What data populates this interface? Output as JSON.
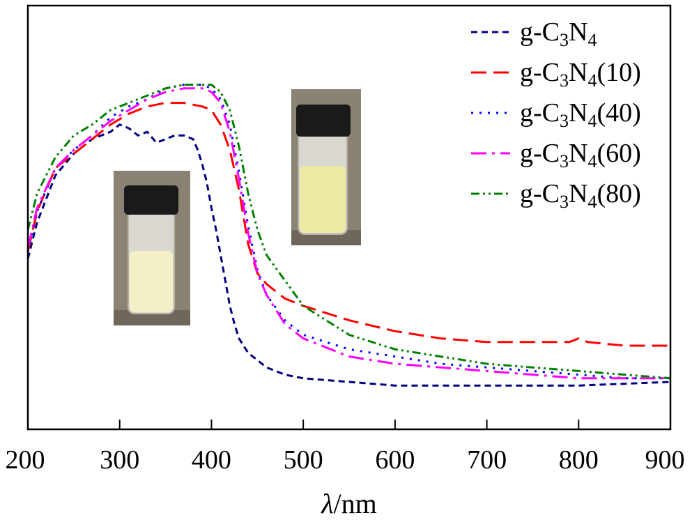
{
  "chart_data": {
    "type": "line",
    "title": "",
    "xlabel_symbol": "λ",
    "xlabel_unit": "/nm",
    "ylabel": "",
    "xlim": [
      200,
      900
    ],
    "ylim": [
      0,
      1
    ],
    "x_ticks": [
      200,
      300,
      400,
      500,
      600,
      700,
      800,
      900
    ],
    "y_ticks_shown": false,
    "legend_position": "top-right",
    "series": [
      {
        "name": "g-C3N4",
        "legend_base": "g-C",
        "legend_sub1": "3",
        "legend_mid": "N",
        "legend_sub2": "4",
        "legend_suffix": "",
        "color": "#000080",
        "dash": "9,6",
        "x": [
          200,
          210,
          230,
          250,
          270,
          290,
          300,
          310,
          320,
          330,
          340,
          350,
          360,
          370,
          380,
          385,
          390,
          395,
          400,
          405,
          410,
          415,
          420,
          425,
          430,
          440,
          450,
          460,
          480,
          500,
          550,
          600,
          650,
          700,
          750,
          800,
          850,
          900
        ],
        "y": [
          0.44,
          0.54,
          0.67,
          0.73,
          0.77,
          0.79,
          0.81,
          0.8,
          0.78,
          0.79,
          0.76,
          0.77,
          0.78,
          0.78,
          0.77,
          0.74,
          0.7,
          0.65,
          0.58,
          0.52,
          0.45,
          0.38,
          0.31,
          0.26,
          0.22,
          0.18,
          0.16,
          0.14,
          0.12,
          0.11,
          0.1,
          0.09,
          0.09,
          0.09,
          0.09,
          0.09,
          0.095,
          0.1
        ]
      },
      {
        "name": "g-C3N4(10)",
        "legend_base": "g-C",
        "legend_sub1": "3",
        "legend_mid": "N",
        "legend_sub2": "4",
        "legend_suffix": "(10)",
        "color": "#ff0000",
        "dash": "22,10",
        "x": [
          200,
          210,
          230,
          250,
          270,
          290,
          310,
          330,
          350,
          370,
          390,
          400,
          410,
          420,
          430,
          440,
          450,
          460,
          470,
          480,
          500,
          550,
          600,
          650,
          700,
          750,
          790,
          800,
          810,
          850,
          900
        ],
        "y": [
          0.46,
          0.57,
          0.69,
          0.73,
          0.77,
          0.81,
          0.84,
          0.86,
          0.87,
          0.87,
          0.86,
          0.85,
          0.81,
          0.74,
          0.63,
          0.48,
          0.4,
          0.37,
          0.35,
          0.33,
          0.31,
          0.27,
          0.24,
          0.22,
          0.21,
          0.21,
          0.21,
          0.22,
          0.21,
          0.2,
          0.2
        ]
      },
      {
        "name": "g-C3N4(40)",
        "legend_base": "g-C",
        "legend_sub1": "3",
        "legend_mid": "N",
        "legend_sub2": "4",
        "legend_suffix": "(40)",
        "color": "#0000ff",
        "dash": "3,9",
        "x": [
          200,
          210,
          230,
          250,
          270,
          290,
          310,
          330,
          350,
          370,
          390,
          400,
          410,
          420,
          430,
          440,
          450,
          460,
          480,
          500,
          550,
          600,
          650,
          700,
          750,
          800,
          850,
          900
        ],
        "y": [
          0.46,
          0.57,
          0.69,
          0.74,
          0.78,
          0.83,
          0.86,
          0.88,
          0.91,
          0.92,
          0.92,
          0.91,
          0.88,
          0.81,
          0.68,
          0.53,
          0.41,
          0.34,
          0.27,
          0.23,
          0.19,
          0.17,
          0.15,
          0.14,
          0.13,
          0.12,
          0.11,
          0.11
        ]
      },
      {
        "name": "g-C3N4(60)",
        "legend_base": "g-C",
        "legend_sub1": "3",
        "legend_mid": "N",
        "legend_sub2": "4",
        "legend_suffix": "(60)",
        "color": "#ff00ff",
        "dash": "22,8,4,8",
        "x": [
          200,
          210,
          230,
          250,
          270,
          290,
          310,
          330,
          350,
          370,
          390,
          400,
          410,
          420,
          430,
          440,
          450,
          460,
          480,
          500,
          550,
          600,
          650,
          700,
          750,
          800,
          850,
          900
        ],
        "y": [
          0.47,
          0.58,
          0.69,
          0.74,
          0.78,
          0.82,
          0.85,
          0.88,
          0.9,
          0.91,
          0.91,
          0.9,
          0.87,
          0.79,
          0.66,
          0.51,
          0.4,
          0.34,
          0.26,
          0.22,
          0.17,
          0.15,
          0.14,
          0.13,
          0.12,
          0.11,
          0.11,
          0.11
        ]
      },
      {
        "name": "g-C3N4(80)",
        "legend_base": "g-C",
        "legend_sub1": "3",
        "legend_mid": "N",
        "legend_sub2": "4",
        "legend_suffix": "(80)",
        "color": "#008000",
        "dash": "12,5,3,5,3,5",
        "x": [
          200,
          210,
          230,
          250,
          270,
          290,
          310,
          330,
          350,
          370,
          390,
          400,
          410,
          420,
          430,
          440,
          450,
          460,
          480,
          500,
          550,
          600,
          650,
          700,
          750,
          800,
          850,
          900
        ],
        "y": [
          0.52,
          0.62,
          0.72,
          0.78,
          0.81,
          0.85,
          0.87,
          0.89,
          0.91,
          0.92,
          0.92,
          0.92,
          0.9,
          0.85,
          0.75,
          0.62,
          0.52,
          0.45,
          0.38,
          0.31,
          0.23,
          0.19,
          0.17,
          0.15,
          0.14,
          0.13,
          0.12,
          0.11
        ]
      }
    ],
    "insets": [
      {
        "name": "vial-left",
        "liquid_color": "#f2f0c4",
        "cap_color": "#1a1a1a",
        "bg_color": "#8a8273"
      },
      {
        "name": "vial-right",
        "liquid_color": "#eeeaa4",
        "cap_color": "#1a1a1a",
        "bg_color": "#8a8273"
      }
    ]
  }
}
